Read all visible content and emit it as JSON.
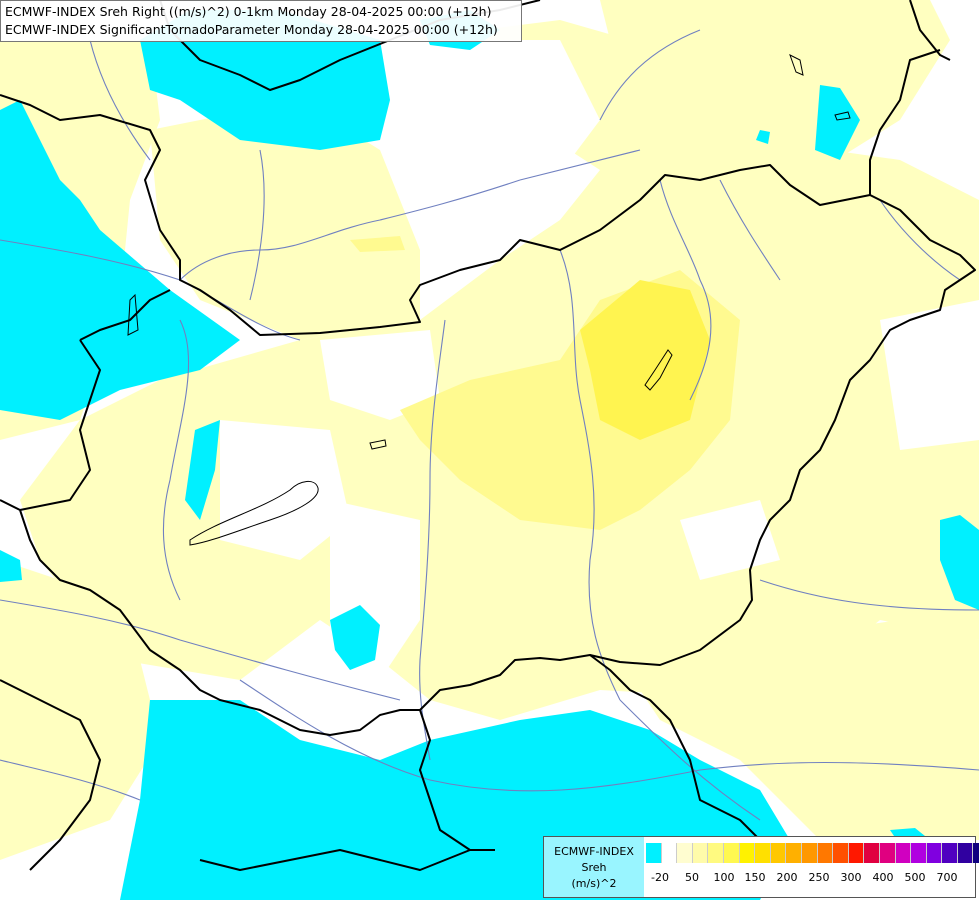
{
  "title": {
    "line1": "ECMWF-INDEX Sreh Right ((m/s)^2) 0-1km Monday 28-04-2025 00:00 (+12h)",
    "line2": "ECMWF-INDEX SignificantTornadoParameter Monday 28-04-2025 00:00 (+12h)"
  },
  "legend": {
    "model": "ECMWF-INDEX",
    "param": "Sreh",
    "unit": "(m/s)^2",
    "colors": [
      "#00f0ff",
      "#ffffff",
      "#fffdd0",
      "#fffbaa",
      "#fffa80",
      "#fff850",
      "#fff200",
      "#ffe000",
      "#ffc800",
      "#ffb000",
      "#ff9800",
      "#ff7800",
      "#ff5000",
      "#ff1800",
      "#e00040",
      "#e00080",
      "#d000c0",
      "#b000e0",
      "#8000e0",
      "#5000c0",
      "#3000a0",
      "#100080"
    ],
    "ticks": [
      "-20",
      "50",
      "100",
      "150",
      "200",
      "250",
      "300",
      "400",
      "500",
      "700"
    ]
  },
  "colors": {
    "cyan": "#00f0ff",
    "pale_yellow": "#ffffc0",
    "yellow": "#fff880",
    "bright_yellow": "#fff450",
    "border": "#000000",
    "river": "#7080c0"
  }
}
